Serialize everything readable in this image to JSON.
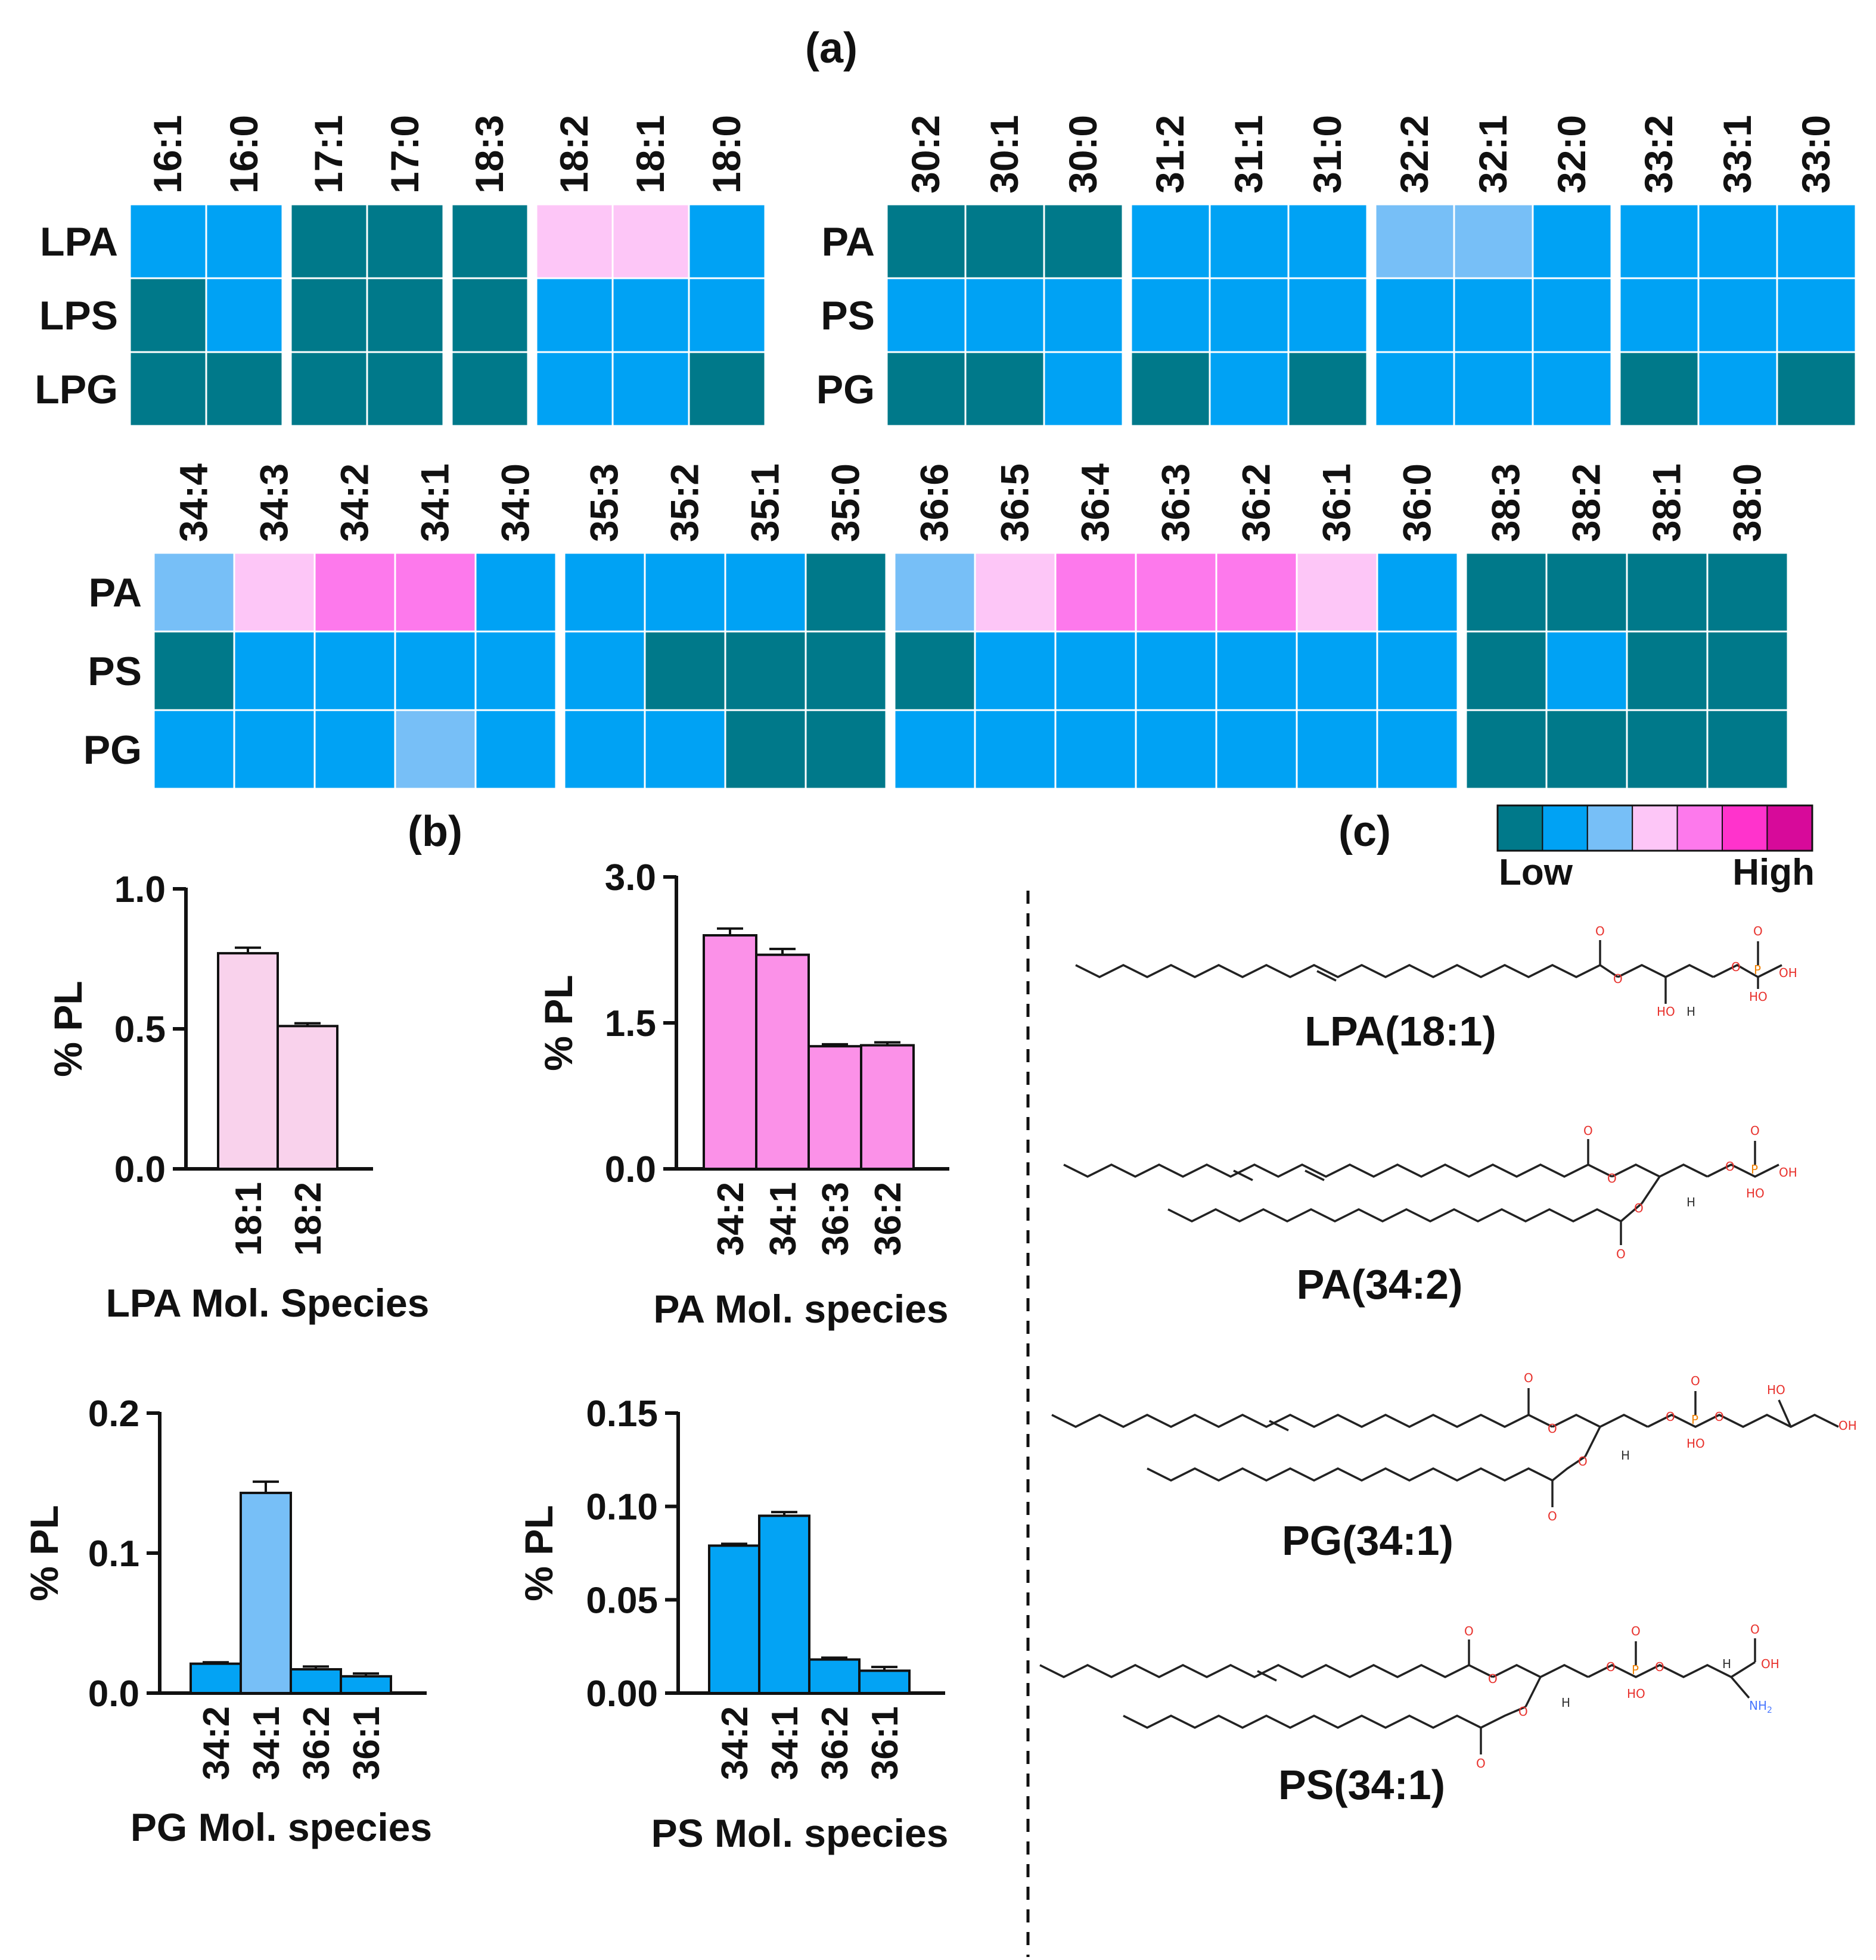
{
  "panel_labels": {
    "a": "(a)",
    "b": "(b)",
    "c": "(c)"
  },
  "colors": {
    "scale": [
      "#00798a",
      "#00a2f4",
      "#77bff7",
      "#fdc6f7",
      "#fd79ec",
      "#ff33cc",
      "#d70a9a"
    ],
    "bar_lpa": "#f9d2ec",
    "bar_pa": "#fb91e8",
    "bar_pg_dark": "#03a3f4",
    "bar_pg_light": "#77bff7",
    "bar_ps": "#03a3f4"
  },
  "legend": {
    "low": "Low",
    "high": "High"
  },
  "chart_data": [
    {
      "type": "heatmap",
      "id": "heat-lyso",
      "rows": [
        "LPA",
        "LPS",
        "LPG"
      ],
      "columns": [
        "16:1",
        "16:0",
        "17:1",
        "17:0",
        "18:3",
        "18:2",
        "18:1",
        "18:0"
      ],
      "groups": [
        2,
        2,
        1,
        3
      ],
      "levels": [
        [
          1,
          1,
          0,
          0,
          0,
          3,
          3,
          1
        ],
        [
          0,
          1,
          0,
          0,
          0,
          1,
          1,
          1
        ],
        [
          0,
          0,
          0,
          0,
          0,
          1,
          1,
          0
        ]
      ]
    },
    {
      "type": "heatmap",
      "id": "heat-diacyl-1",
      "rows": [
        "PA",
        "PS",
        "PG"
      ],
      "columns": [
        "30:2",
        "30:1",
        "30:0",
        "31:2",
        "31:1",
        "31:0",
        "32:2",
        "32:1",
        "32:0",
        "33:2",
        "33:1",
        "33:0"
      ],
      "groups": [
        3,
        3,
        3,
        3
      ],
      "levels": [
        [
          0,
          0,
          0,
          1,
          1,
          1,
          2,
          2,
          1,
          1,
          1,
          1
        ],
        [
          1,
          1,
          1,
          1,
          1,
          1,
          1,
          1,
          1,
          1,
          1,
          1
        ],
        [
          0,
          0,
          1,
          0,
          1,
          0,
          1,
          1,
          1,
          0,
          1,
          0
        ]
      ]
    },
    {
      "type": "heatmap",
      "id": "heat-diacyl-2",
      "rows": [
        "PA",
        "PS",
        "PG"
      ],
      "columns": [
        "34:4",
        "34:3",
        "34:2",
        "34:1",
        "34:0",
        "35:3",
        "35:2",
        "35:1",
        "35:0",
        "36:6",
        "36:5",
        "36:4",
        "36:3",
        "36:2",
        "36:1",
        "36:0",
        "38:3",
        "38:2",
        "38:1",
        "38:0"
      ],
      "groups": [
        5,
        4,
        7,
        4
      ],
      "levels": [
        [
          2,
          3,
          4,
          4,
          1,
          1,
          1,
          1,
          0,
          2,
          3,
          4,
          4,
          4,
          3,
          1,
          0,
          0,
          0,
          0
        ],
        [
          0,
          1,
          1,
          1,
          1,
          1,
          0,
          0,
          0,
          0,
          1,
          1,
          1,
          1,
          1,
          1,
          0,
          1,
          0,
          0
        ],
        [
          1,
          1,
          1,
          2,
          1,
          1,
          1,
          0,
          0,
          1,
          1,
          1,
          1,
          1,
          1,
          1,
          0,
          0,
          0,
          0
        ]
      ]
    },
    {
      "type": "bar",
      "id": "bar-lpa",
      "categories": [
        "18:1",
        "18:2"
      ],
      "values": [
        0.77,
        0.51
      ],
      "errors": [
        0.02,
        0.01
      ],
      "xlabel": "LPA Mol. Species",
      "ylabel": "% PL",
      "ylim": [
        0,
        1.0
      ],
      "yticks": [
        0.0,
        0.5,
        1.0
      ],
      "yticklabels": [
        "0.0",
        "0.5",
        "1.0"
      ]
    },
    {
      "type": "bar",
      "id": "bar-pa",
      "categories": [
        "34:2",
        "34:1",
        "36:3",
        "36:2"
      ],
      "values": [
        2.4,
        2.2,
        1.26,
        1.27
      ],
      "errors": [
        0.07,
        0.06,
        0.02,
        0.03
      ],
      "xlabel": "PA Mol. species",
      "ylabel": "% PL",
      "ylim": [
        0,
        3.0
      ],
      "yticks": [
        0.0,
        1.5,
        3.0
      ],
      "yticklabels": [
        "0.0",
        "1.5",
        "3.0"
      ]
    },
    {
      "type": "bar",
      "id": "bar-pg",
      "categories": [
        "34:2",
        "34:1",
        "36:2",
        "36:1"
      ],
      "values": [
        0.021,
        0.143,
        0.017,
        0.012
      ],
      "errors": [
        0.001,
        0.008,
        0.002,
        0.002
      ],
      "xlabel": "PG Mol. species",
      "ylabel": "% PL",
      "ylim": [
        0,
        0.2
      ],
      "yticks": [
        0.0,
        0.1,
        0.2
      ],
      "yticklabels": [
        "0.0",
        "0.1",
        "0.2"
      ]
    },
    {
      "type": "bar",
      "id": "bar-ps",
      "categories": [
        "34:2",
        "34:1",
        "36:2",
        "36:1"
      ],
      "values": [
        0.079,
        0.095,
        0.018,
        0.012
      ],
      "errors": [
        0.001,
        0.002,
        0.001,
        0.002
      ],
      "xlabel": "PS Mol. species",
      "ylabel": "% PL",
      "ylim": [
        0,
        0.15
      ],
      "yticks": [
        0.0,
        0.05,
        0.1,
        0.15
      ],
      "yticklabels": [
        "0.00",
        "0.05",
        "0.10",
        "0.15"
      ]
    }
  ],
  "structures": [
    {
      "name": "LPA(18:1)"
    },
    {
      "name": "PA(34:2)"
    },
    {
      "name": "PG(34:1)"
    },
    {
      "name": "PS(34:1)"
    }
  ],
  "atoms": {
    "O": "O",
    "P": "P",
    "OH": "OH",
    "HO": "HO",
    "H": "H",
    "NH2": "NH",
    "sub2": "2"
  }
}
